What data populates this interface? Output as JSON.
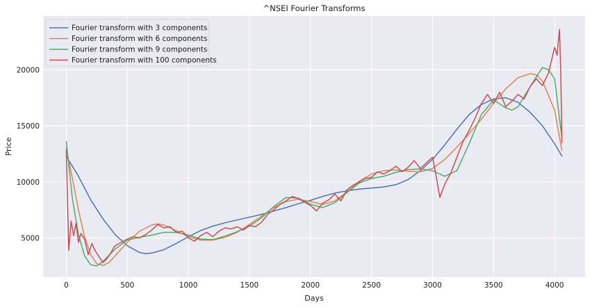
{
  "chart_data": {
    "type": "line",
    "title": "^NSEI Fourier Transforms",
    "xlabel": "Days",
    "ylabel": "Price",
    "xlim": [
      -190,
      4250
    ],
    "ylim": [
      1500,
      24800
    ],
    "xticks": [
      0,
      500,
      1000,
      1500,
      2000,
      2500,
      3000,
      3500,
      4000
    ],
    "yticks": [
      5000,
      10000,
      15000,
      20000
    ],
    "grid": true,
    "legend": "top-left",
    "series": [
      {
        "name": "Fourier transform with 3 components",
        "color": "#4c72b0",
        "x": [
          0,
          100,
          200,
          300,
          400,
          500,
          600,
          650,
          700,
          800,
          900,
          1000,
          1100,
          1200,
          1300,
          1400,
          1500,
          1600,
          1700,
          1800,
          1900,
          2000,
          2100,
          2200,
          2300,
          2400,
          2500,
          2600,
          2700,
          2800,
          2900,
          3000,
          3100,
          3200,
          3300,
          3400,
          3500,
          3600,
          3700,
          3800,
          3900,
          4000,
          4060
        ],
        "y": [
          12300,
          10500,
          8400,
          6700,
          5300,
          4300,
          3700,
          3600,
          3650,
          3950,
          4500,
          5100,
          5650,
          6050,
          6350,
          6600,
          6850,
          7100,
          7400,
          7700,
          8050,
          8350,
          8700,
          9000,
          9200,
          9350,
          9450,
          9550,
          9750,
          10200,
          11000,
          12000,
          13300,
          14700,
          16000,
          16900,
          17400,
          17500,
          17100,
          16200,
          15000,
          13400,
          12300
        ]
      },
      {
        "name": "Fourier transform with 6 components",
        "color": "#dd8452",
        "x": [
          0,
          50,
          100,
          150,
          200,
          250,
          300,
          350,
          400,
          500,
          600,
          700,
          750,
          800,
          900,
          1000,
          1100,
          1200,
          1300,
          1400,
          1500,
          1600,
          1700,
          1800,
          1900,
          2000,
          2100,
          2200,
          2300,
          2400,
          2500,
          2600,
          2700,
          2800,
          2900,
          3000,
          3100,
          3200,
          3300,
          3400,
          3500,
          3600,
          3700,
          3800,
          3850,
          3900,
          4000,
          4060
        ],
        "y": [
          13000,
          10300,
          7500,
          5100,
          3500,
          2700,
          2550,
          2800,
          3400,
          4600,
          5600,
          6150,
          6250,
          6150,
          5650,
          5100,
          4800,
          4800,
          5050,
          5500,
          6200,
          6950,
          7700,
          8250,
          8450,
          8250,
          8000,
          8300,
          9100,
          10050,
          10700,
          11000,
          11050,
          10950,
          10900,
          11200,
          12000,
          13100,
          14300,
          15600,
          17000,
          18300,
          19300,
          19650,
          19550,
          19000,
          16400,
          12800
        ]
      },
      {
        "name": "Fourier transform with 9 components",
        "color": "#55a868",
        "x": [
          0,
          50,
          100,
          150,
          200,
          250,
          300,
          400,
          500,
          600,
          700,
          800,
          900,
          1000,
          1100,
          1200,
          1300,
          1400,
          1500,
          1600,
          1700,
          1800,
          1900,
          2000,
          2100,
          2200,
          2300,
          2400,
          2500,
          2600,
          2700,
          2800,
          2900,
          3000,
          3100,
          3200,
          3300,
          3400,
          3500,
          3600,
          3650,
          3700,
          3800,
          3900,
          3950,
          4000,
          4060
        ],
        "y": [
          13600,
          8500,
          5300,
          3400,
          2600,
          2500,
          2900,
          4000,
          4800,
          5050,
          5250,
          5500,
          5500,
          5250,
          4900,
          4850,
          5150,
          5550,
          6050,
          6800,
          7800,
          8600,
          8550,
          8000,
          7700,
          8150,
          9050,
          9900,
          10300,
          10500,
          10850,
          11100,
          11150,
          11000,
          10500,
          11000,
          13400,
          16000,
          17300,
          16600,
          16400,
          16700,
          18500,
          20200,
          20000,
          19200,
          13900
        ]
      },
      {
        "name": "Fourier transform with 100 components",
        "color": "#c44e52",
        "x": [
          0,
          20,
          40,
          60,
          80,
          100,
          120,
          150,
          180,
          210,
          240,
          270,
          300,
          330,
          360,
          400,
          450,
          500,
          550,
          600,
          650,
          700,
          750,
          800,
          850,
          900,
          950,
          1000,
          1050,
          1100,
          1150,
          1200,
          1250,
          1300,
          1350,
          1400,
          1450,
          1500,
          1550,
          1600,
          1650,
          1700,
          1750,
          1800,
          1850,
          1900,
          1950,
          2000,
          2050,
          2100,
          2150,
          2200,
          2250,
          2300,
          2350,
          2400,
          2450,
          2500,
          2550,
          2600,
          2650,
          2700,
          2750,
          2800,
          2850,
          2900,
          2950,
          3000,
          3030,
          3060,
          3100,
          3150,
          3200,
          3250,
          3300,
          3350,
          3400,
          3450,
          3500,
          3550,
          3600,
          3650,
          3700,
          3750,
          3800,
          3850,
          3900,
          3950,
          4000,
          4020,
          4040,
          4050,
          4060
        ],
        "y": [
          12800,
          3900,
          6500,
          5200,
          6300,
          4600,
          5400,
          4900,
          3500,
          4500,
          3800,
          3300,
          2800,
          3100,
          3600,
          4300,
          4600,
          4900,
          5100,
          5000,
          5300,
          5700,
          6200,
          5900,
          6000,
          5500,
          5600,
          5000,
          4700,
          5200,
          5500,
          5100,
          5600,
          5900,
          5800,
          6000,
          5700,
          6100,
          6000,
          6400,
          7100,
          7500,
          8000,
          8300,
          8700,
          8500,
          8200,
          7900,
          7400,
          8100,
          8400,
          8900,
          8300,
          9300,
          9700,
          10000,
          10300,
          10400,
          10900,
          10700,
          11000,
          11400,
          10900,
          11300,
          11900,
          11200,
          11700,
          12200,
          10500,
          8600,
          9800,
          10800,
          12200,
          13600,
          14600,
          15700,
          17000,
          17800,
          17000,
          18000,
          16700,
          17200,
          17800,
          17400,
          18500,
          19200,
          18600,
          19700,
          22000,
          21300,
          23600,
          20000,
          13500
        ]
      }
    ]
  }
}
